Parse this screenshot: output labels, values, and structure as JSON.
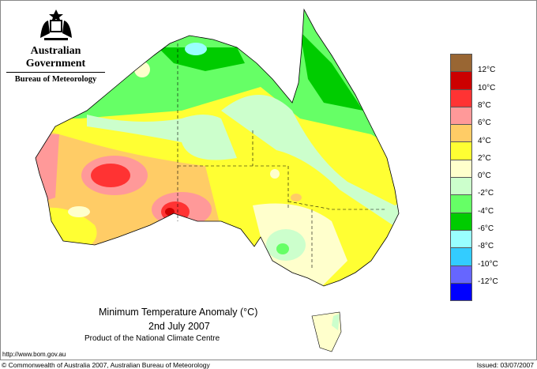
{
  "header": {
    "government": "Australian Government",
    "bureau": "Bureau of Meteorology"
  },
  "title": {
    "line1": "Minimum Temperature Anomaly (°C)",
    "line2": "2nd July 2007",
    "line3": "Product of the National Climate Centre"
  },
  "url": "http://www.bom.gov.au",
  "footer": {
    "copyright": "© Commonwealth of Australia 2007, Australian Bureau of Meteorology",
    "issued": "Issued: 03/07/2007"
  },
  "legend": {
    "colors": [
      "#996633",
      "#cc0000",
      "#ff3333",
      "#ff9999",
      "#ffcc66",
      "#ffff33",
      "#ffffcc",
      "#ccffcc",
      "#66ff66",
      "#00cc00",
      "#99ffff",
      "#33ccff",
      "#6666ff",
      "#0000ff"
    ],
    "labels": [
      "12°C",
      "10°C",
      "8°C",
      "6°C",
      "4°C",
      "2°C",
      "0°C",
      "-2°C",
      "-4°C",
      "-6°C",
      "-8°C",
      "-10°C",
      "-12°C"
    ]
  }
}
